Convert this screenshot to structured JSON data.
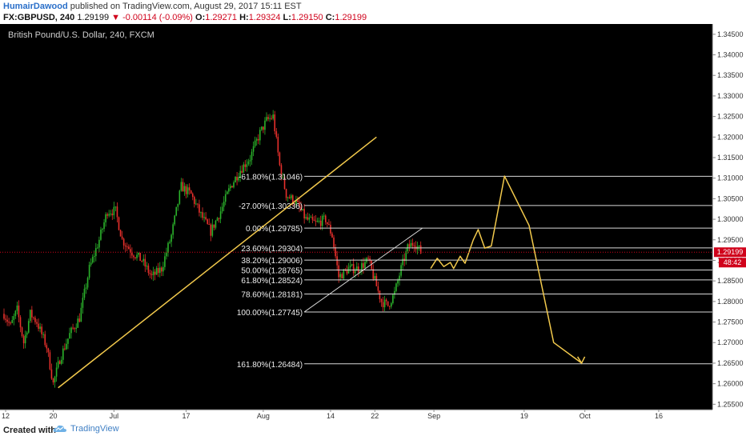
{
  "header": {
    "author": "HumairDawood",
    "published": "published on TradingView.com, August 29, 2017 15:11 EST",
    "symbol": "FX:GBPUSD, 240",
    "last": "1.29199",
    "change": "-0.00114 (-0.09%)",
    "open_label": "O:",
    "open": "1.29271",
    "high_label": "H:",
    "high": "1.29324",
    "low_label": "L:",
    "low": "1.29150",
    "close_label": "C:",
    "close": "1.29199"
  },
  "chart_title": "British Pound/U.S. Dollar, 240, FXCM",
  "footer": {
    "created_with": "Created with",
    "brand": "TradingView"
  },
  "colors": {
    "background": "#000000",
    "up": "#2bb32b",
    "down": "#e8302c",
    "fib": "#d8d8d8",
    "trend": "#f2c94c",
    "axis_bg": "#ffffff",
    "price_marker": "#d0021b"
  },
  "chart_data": {
    "type": "candlestick",
    "title": "British Pound/U.S. Dollar, 240, FXCM",
    "x_ticks": [
      {
        "label": "12",
        "bar": 1
      },
      {
        "label": "20",
        "bar": 30
      },
      {
        "label": "Jul",
        "bar": 67
      },
      {
        "label": "17",
        "bar": 111
      },
      {
        "label": "Aug",
        "bar": 158
      },
      {
        "label": "14",
        "bar": 199
      },
      {
        "label": "22",
        "bar": 226
      },
      {
        "label": "Sep",
        "bar": 262
      },
      {
        "label": "19",
        "bar": 317
      },
      {
        "label": "Oct",
        "bar": 354
      },
      {
        "label": "16",
        "bar": 399
      }
    ],
    "y_ticks": [
      "1.34500",
      "1.34000",
      "1.33500",
      "1.33000",
      "1.32500",
      "1.32000",
      "1.31500",
      "1.31000",
      "1.30500",
      "1.30000",
      "1.29500",
      "1.29000",
      "1.28500",
      "1.28000",
      "1.27500",
      "1.27000",
      "1.26500",
      "1.26000",
      "1.25500"
    ],
    "ylim": [
      1.2537,
      1.3475
    ],
    "price_anchor": [
      {
        "bar": 0,
        "price": 1.277
      },
      {
        "bar": 4,
        "price": 1.274
      },
      {
        "bar": 8,
        "price": 1.278
      },
      {
        "bar": 12,
        "price": 1.27
      },
      {
        "bar": 16,
        "price": 1.277
      },
      {
        "bar": 20,
        "price": 1.275
      },
      {
        "bar": 26,
        "price": 1.269
      },
      {
        "bar": 30,
        "price": 1.26
      },
      {
        "bar": 34,
        "price": 1.266
      },
      {
        "bar": 40,
        "price": 1.272
      },
      {
        "bar": 46,
        "price": 1.276
      },
      {
        "bar": 52,
        "price": 1.288
      },
      {
        "bar": 58,
        "price": 1.295
      },
      {
        "bar": 63,
        "price": 1.302
      },
      {
        "bar": 68,
        "price": 1.302
      },
      {
        "bar": 72,
        "price": 1.295
      },
      {
        "bar": 78,
        "price": 1.292
      },
      {
        "bar": 84,
        "price": 1.29
      },
      {
        "bar": 90,
        "price": 1.286
      },
      {
        "bar": 96,
        "price": 1.288
      },
      {
        "bar": 102,
        "price": 1.296
      },
      {
        "bar": 108,
        "price": 1.308
      },
      {
        "bar": 114,
        "price": 1.306
      },
      {
        "bar": 120,
        "price": 1.301
      },
      {
        "bar": 126,
        "price": 1.297
      },
      {
        "bar": 132,
        "price": 1.302
      },
      {
        "bar": 138,
        "price": 1.308
      },
      {
        "bar": 144,
        "price": 1.312
      },
      {
        "bar": 150,
        "price": 1.315
      },
      {
        "bar": 156,
        "price": 1.321
      },
      {
        "bar": 160,
        "price": 1.324
      },
      {
        "bar": 164,
        "price": 1.325
      },
      {
        "bar": 168,
        "price": 1.313
      },
      {
        "bar": 172,
        "price": 1.306
      },
      {
        "bar": 178,
        "price": 1.304
      },
      {
        "bar": 184,
        "price": 1.3
      },
      {
        "bar": 190,
        "price": 1.299
      },
      {
        "bar": 196,
        "price": 1.3
      },
      {
        "bar": 200,
        "price": 1.296
      },
      {
        "bar": 204,
        "price": 1.286
      },
      {
        "bar": 210,
        "price": 1.288
      },
      {
        "bar": 216,
        "price": 1.288
      },
      {
        "bar": 222,
        "price": 1.29
      },
      {
        "bar": 226,
        "price": 1.285
      },
      {
        "bar": 230,
        "price": 1.28
      },
      {
        "bar": 234,
        "price": 1.279
      },
      {
        "bar": 238,
        "price": 1.282
      },
      {
        "bar": 242,
        "price": 1.288
      },
      {
        "bar": 246,
        "price": 1.293
      },
      {
        "bar": 250,
        "price": 1.2945
      },
      {
        "bar": 254,
        "price": 1.292
      }
    ],
    "fib_levels": [
      {
        "label": "-61.80%(1.31046)",
        "price": 1.31046
      },
      {
        "label": "-27.00%(1.30336)",
        "price": 1.30336
      },
      {
        "label": "0.00%(1.29785)",
        "price": 1.29785
      },
      {
        "label": "23.60%(1.29304)",
        "price": 1.29304
      },
      {
        "label": "38.20%(1.29006)",
        "price": 1.29006
      },
      {
        "label": "50.00%(1.28765)",
        "price": 1.28765
      },
      {
        "label": "61.80%(1.28524)",
        "price": 1.28524
      },
      {
        "label": "78.60%(1.28181)",
        "price": 1.28181
      },
      {
        "label": "100.00%(1.27745)",
        "price": 1.27745
      },
      {
        "label": "161.80%(1.26484)",
        "price": 1.26484
      }
    ],
    "fib_start_bar": 183,
    "last_price": "1.29199",
    "countdown": "48:42"
  }
}
